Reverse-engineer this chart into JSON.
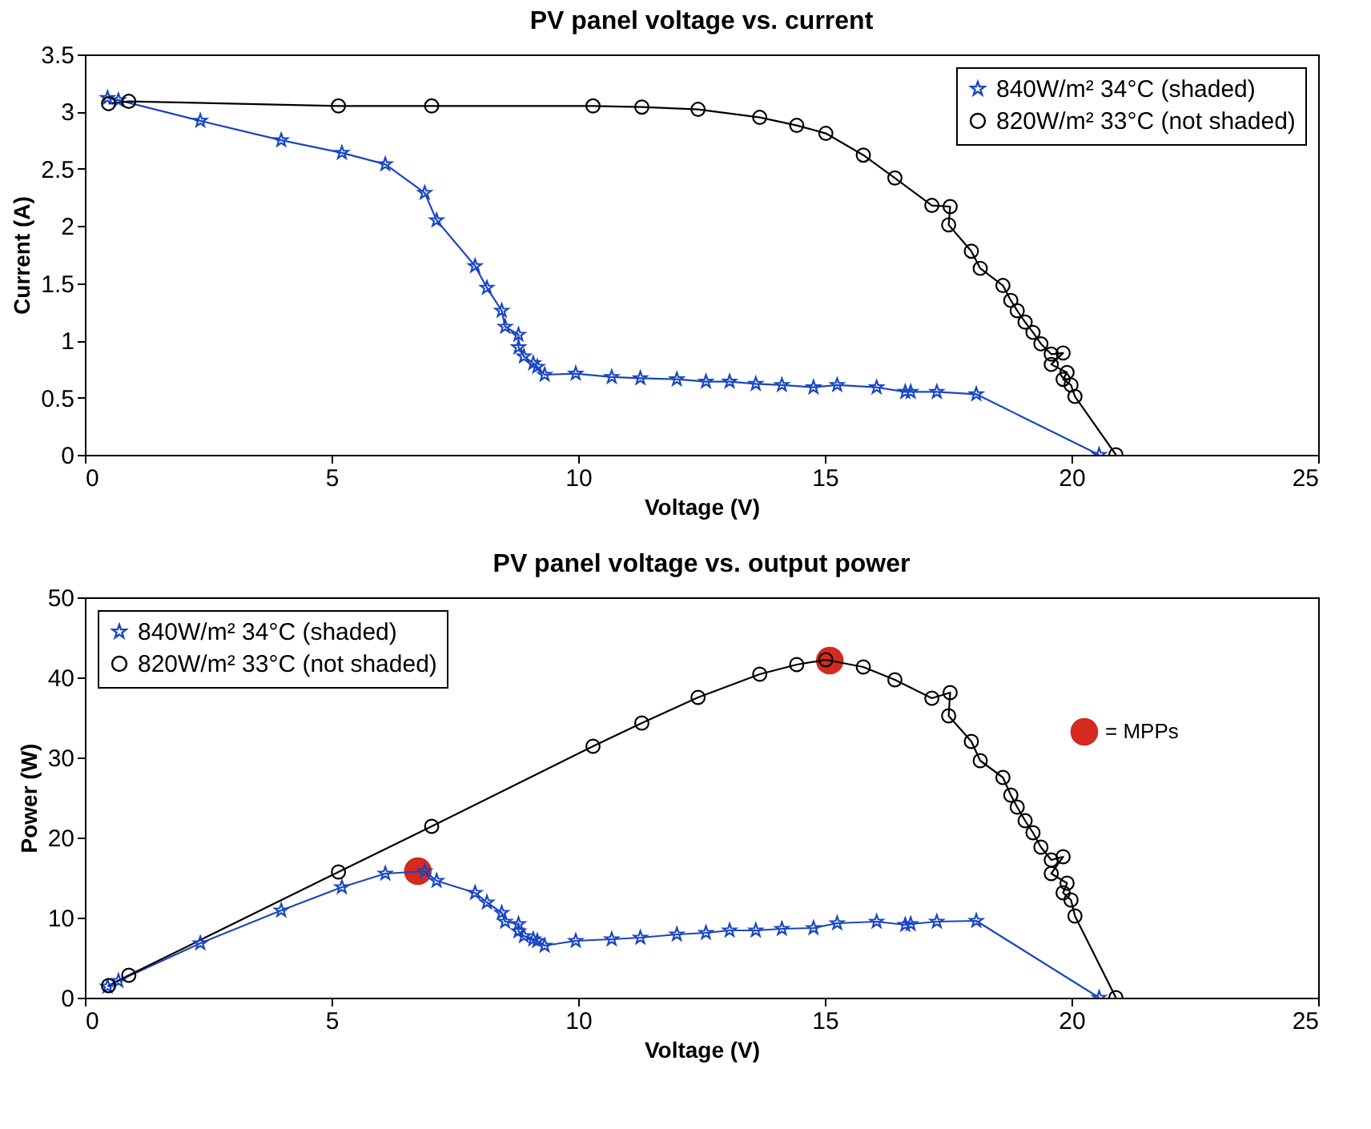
{
  "chart_data": [
    {
      "type": "line",
      "title": "PV panel voltage vs. current",
      "xlabel": "Voltage (V)",
      "ylabel": "Current (A)",
      "xlim": [
        0,
        25
      ],
      "xticks": [
        0,
        5,
        10,
        15,
        20,
        25
      ],
      "ylim": [
        0,
        3.5
      ],
      "yticks": [
        0,
        0.5,
        1,
        1.5,
        2,
        2.5,
        3,
        3.5
      ],
      "grid": false,
      "legend": "top right",
      "line_style": "solid",
      "series": [
        {
          "name": "840W/m² 34°C (shaded)",
          "color": "#1a47c0",
          "marker": "star",
          "x": [
            0.46,
            0.68,
            2.34,
            3.98,
            5.21,
            6.09,
            6.89,
            7.13,
            7.91,
            8.15,
            8.45,
            8.52,
            8.79,
            8.79,
            8.9,
            9.09,
            9.17,
            9.32,
            9.95,
            10.68,
            11.26,
            12.0,
            12.59,
            13.07,
            13.6,
            14.13,
            14.77,
            15.25,
            16.05,
            16.63,
            16.74,
            17.27,
            18.07,
            20.56
          ],
          "values": [
            3.12,
            3.1,
            2.92,
            2.75,
            2.64,
            2.54,
            2.29,
            2.05,
            1.65,
            1.46,
            1.26,
            1.12,
            1.05,
            0.94,
            0.86,
            0.8,
            0.77,
            0.7,
            0.71,
            0.68,
            0.67,
            0.66,
            0.64,
            0.64,
            0.62,
            0.61,
            0.59,
            0.61,
            0.59,
            0.55,
            0.55,
            0.55,
            0.53,
            0
          ]
        },
        {
          "name": "820W/m² 33°C (not shaded)",
          "color": "#000000",
          "marker": "circle",
          "x": [
            0.48,
            0.89,
            5.14,
            7.03,
            10.3,
            11.29,
            12.43,
            13.68,
            14.43,
            15.02,
            15.78,
            16.42,
            17.17,
            17.54,
            17.51,
            17.97,
            18.15,
            18.61,
            18.77,
            18.9,
            19.06,
            19.22,
            19.38,
            19.59,
            19.83,
            19.59,
            19.91,
            19.83,
            19.99,
            20.07,
            20.9
          ],
          "values": [
            3.07,
            3.09,
            3.05,
            3.05,
            3.05,
            3.04,
            3.02,
            2.95,
            2.88,
            2.81,
            2.62,
            2.42,
            2.18,
            2.17,
            2.01,
            1.78,
            1.63,
            1.48,
            1.35,
            1.26,
            1.16,
            1.07,
            0.97,
            0.88,
            0.89,
            0.79,
            0.72,
            0.66,
            0.61,
            0.51,
            0
          ]
        }
      ]
    },
    {
      "type": "line",
      "title": "PV panel voltage vs. output power",
      "xlabel": "Voltage (V)",
      "ylabel": "Power (W)",
      "xlim": [
        0,
        25
      ],
      "xticks": [
        0,
        5,
        10,
        15,
        20,
        25
      ],
      "ylim": [
        0,
        50
      ],
      "yticks": [
        0,
        10,
        20,
        30,
        40,
        50
      ],
      "grid": false,
      "legend": "top left",
      "line_style": "solid",
      "series": [
        {
          "name": "840W/m² 34°C (shaded)",
          "color": "#1a47c0",
          "marker": "star",
          "x": [
            0.46,
            0.68,
            2.34,
            3.98,
            5.21,
            6.09,
            6.89,
            7.13,
            7.91,
            8.15,
            8.45,
            8.52,
            8.79,
            8.79,
            8.9,
            9.09,
            9.17,
            9.32,
            9.95,
            10.68,
            11.26,
            12.0,
            12.59,
            13.07,
            13.6,
            14.13,
            14.77,
            15.25,
            16.05,
            16.63,
            16.74,
            17.27,
            18.07,
            20.56
          ],
          "values": [
            1.4,
            2.1,
            6.8,
            10.9,
            13.8,
            15.5,
            15.8,
            14.6,
            13.1,
            11.9,
            10.6,
            9.5,
            9.2,
            8.3,
            7.7,
            7.3,
            7.1,
            6.5,
            7.1,
            7.3,
            7.5,
            7.9,
            8.1,
            8.4,
            8.4,
            8.6,
            8.7,
            9.3,
            9.5,
            9.1,
            9.2,
            9.5,
            9.6,
            0
          ]
        },
        {
          "name": "820W/m² 33°C (not shaded)",
          "color": "#000000",
          "marker": "circle",
          "x": [
            0.48,
            0.89,
            5.14,
            7.03,
            10.3,
            11.29,
            12.43,
            13.68,
            14.43,
            15.02,
            15.78,
            16.42,
            17.17,
            17.54,
            17.51,
            17.97,
            18.15,
            18.61,
            18.77,
            18.9,
            19.06,
            19.22,
            19.38,
            19.59,
            19.83,
            19.59,
            19.91,
            19.83,
            19.99,
            20.07,
            20.9
          ],
          "values": [
            1.5,
            2.8,
            15.7,
            21.4,
            31.4,
            34.3,
            37.5,
            40.4,
            41.6,
            42.2,
            41.3,
            39.7,
            37.4,
            38.1,
            35.2,
            32.0,
            29.6,
            27.5,
            25.3,
            23.8,
            22.1,
            20.6,
            18.8,
            17.2,
            17.6,
            15.5,
            14.3,
            13.1,
            12.2,
            10.2,
            0
          ]
        },
        {
          "name": "= MPPs",
          "type": "scatter",
          "color": "#d42a1f",
          "marker": "circle",
          "x": [
            6.75,
            15.1
          ],
          "values": [
            15.8,
            42.1
          ]
        }
      ]
    }
  ]
}
